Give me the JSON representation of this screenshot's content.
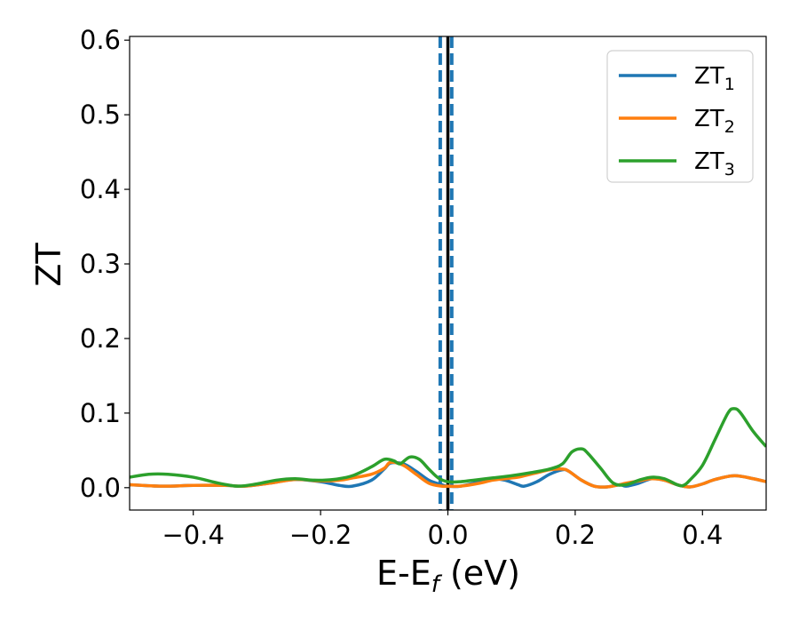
{
  "chart_data": {
    "type": "line",
    "xlabel": "E-E",
    "xlabel_sub": "f",
    "xlabel_unit": " (eV)",
    "ylabel": "ZT",
    "xlim": [
      -0.5,
      0.5
    ],
    "ylim": [
      -0.03,
      0.605
    ],
    "xticks": [
      -0.4,
      -0.2,
      0.0,
      0.2,
      0.4
    ],
    "xtick_labels": [
      "−0.4",
      "−0.2",
      "0.0",
      "0.2",
      "0.4"
    ],
    "yticks": [
      0.0,
      0.1,
      0.2,
      0.3,
      0.4,
      0.5,
      0.6
    ],
    "ytick_labels": [
      "0.0",
      "0.1",
      "0.2",
      "0.3",
      "0.4",
      "0.5",
      "0.6"
    ],
    "grid": false,
    "legend_position": "top-right",
    "vertical_lines": [
      {
        "x": 0.0,
        "style": "solid",
        "color": "#000000"
      },
      {
        "x": -0.012,
        "style": "dashed",
        "color": "#1f77b4"
      },
      {
        "x": 0.006,
        "style": "dashed",
        "color": "#1f77b4"
      }
    ],
    "series": [
      {
        "name": "ZT",
        "subscript": "1",
        "color": "#1f77b4",
        "x": [
          -0.5,
          -0.45,
          -0.4,
          -0.35,
          -0.32,
          -0.28,
          -0.24,
          -0.2,
          -0.17,
          -0.15,
          -0.12,
          -0.1,
          -0.09,
          -0.07,
          -0.05,
          -0.03,
          -0.01,
          0.0,
          0.02,
          0.05,
          0.07,
          0.09,
          0.11,
          0.12,
          0.14,
          0.16,
          0.18,
          0.19,
          0.21,
          0.23,
          0.25,
          0.27,
          0.28,
          0.3,
          0.32,
          0.34,
          0.36,
          0.38,
          0.4,
          0.42,
          0.45,
          0.48,
          0.5
        ],
        "y": [
          0.004,
          0.002,
          0.003,
          0.003,
          0.002,
          0.006,
          0.011,
          0.008,
          0.003,
          0.002,
          0.01,
          0.025,
          0.033,
          0.032,
          0.022,
          0.01,
          0.004,
          0.002,
          0.002,
          0.008,
          0.012,
          0.01,
          0.004,
          0.002,
          0.008,
          0.018,
          0.024,
          0.022,
          0.01,
          0.002,
          0.001,
          0.004,
          0.002,
          0.006,
          0.012,
          0.01,
          0.004,
          0.001,
          0.005,
          0.011,
          0.016,
          0.012,
          0.008
        ]
      },
      {
        "name": "ZT",
        "subscript": "2",
        "color": "#ff7f0e",
        "x": [
          -0.5,
          -0.45,
          -0.4,
          -0.35,
          -0.32,
          -0.28,
          -0.24,
          -0.2,
          -0.17,
          -0.15,
          -0.12,
          -0.1,
          -0.09,
          -0.07,
          -0.05,
          -0.03,
          -0.01,
          0.0,
          0.02,
          0.05,
          0.07,
          0.09,
          0.11,
          0.12,
          0.14,
          0.16,
          0.18,
          0.19,
          0.21,
          0.23,
          0.25,
          0.27,
          0.28,
          0.3,
          0.32,
          0.34,
          0.36,
          0.38,
          0.4,
          0.42,
          0.45,
          0.48,
          0.5
        ],
        "y": [
          0.004,
          0.002,
          0.003,
          0.003,
          0.002,
          0.006,
          0.011,
          0.009,
          0.01,
          0.013,
          0.018,
          0.026,
          0.034,
          0.03,
          0.018,
          0.006,
          0.002,
          0.002,
          0.002,
          0.006,
          0.01,
          0.012,
          0.014,
          0.016,
          0.02,
          0.024,
          0.025,
          0.022,
          0.01,
          0.002,
          0.001,
          0.004,
          0.006,
          0.009,
          0.012,
          0.01,
          0.004,
          0.001,
          0.005,
          0.011,
          0.016,
          0.012,
          0.008
        ]
      },
      {
        "name": "ZT",
        "subscript": "3",
        "color": "#2ca02c",
        "x": [
          -0.5,
          -0.47,
          -0.44,
          -0.4,
          -0.36,
          -0.33,
          -0.3,
          -0.27,
          -0.24,
          -0.21,
          -0.18,
          -0.15,
          -0.12,
          -0.1,
          -0.085,
          -0.075,
          -0.06,
          -0.045,
          -0.03,
          -0.015,
          0.0,
          0.02,
          0.04,
          0.07,
          0.1,
          0.13,
          0.16,
          0.18,
          0.195,
          0.21,
          0.22,
          0.24,
          0.26,
          0.28,
          0.3,
          0.32,
          0.34,
          0.36,
          0.37,
          0.38,
          0.4,
          0.42,
          0.44,
          0.45,
          0.46,
          0.48,
          0.5
        ],
        "y": [
          0.014,
          0.018,
          0.018,
          0.014,
          0.006,
          0.002,
          0.005,
          0.01,
          0.012,
          0.01,
          0.011,
          0.016,
          0.028,
          0.038,
          0.036,
          0.032,
          0.041,
          0.038,
          0.025,
          0.013,
          0.008,
          0.008,
          0.01,
          0.013,
          0.016,
          0.02,
          0.025,
          0.032,
          0.048,
          0.052,
          0.046,
          0.026,
          0.006,
          0.004,
          0.01,
          0.014,
          0.012,
          0.004,
          0.003,
          0.01,
          0.03,
          0.065,
          0.1,
          0.106,
          0.1,
          0.075,
          0.055
        ]
      }
    ]
  }
}
